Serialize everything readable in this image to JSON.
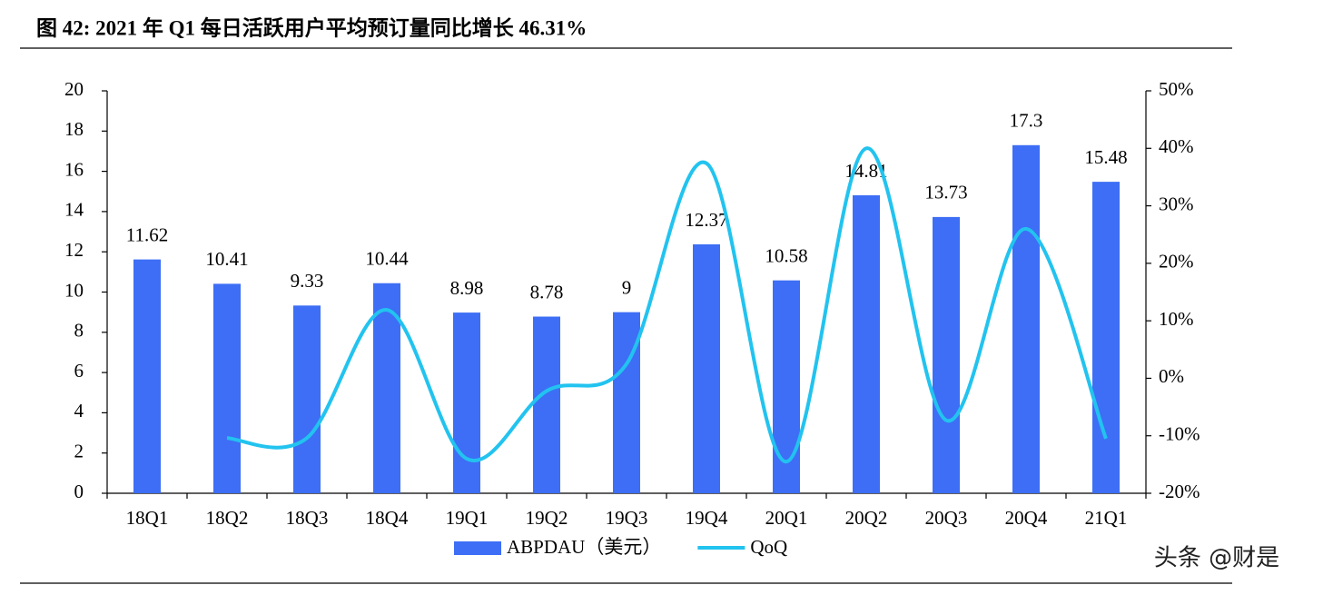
{
  "chart_data": {
    "type": "bar-line",
    "title": "图 42: 2021 年 Q1 每日活跃用户平均预订量同比增长 46.31%",
    "categories": [
      "18Q1",
      "18Q2",
      "18Q3",
      "18Q4",
      "19Q1",
      "19Q2",
      "19Q3",
      "19Q4",
      "20Q1",
      "20Q2",
      "20Q3",
      "20Q4",
      "21Q1"
    ],
    "series": [
      {
        "name": "ABPDAU（美元）",
        "type": "bar",
        "color": "#3d6ef5",
        "values": [
          11.62,
          10.41,
          9.33,
          10.44,
          8.98,
          8.78,
          9,
          12.37,
          10.58,
          14.81,
          13.73,
          17.3,
          15.48
        ]
      },
      {
        "name": "QoQ",
        "type": "line",
        "axis": "y2",
        "color": "#22c3ef",
        "values": [
          null,
          -10.4,
          -10.4,
          11.9,
          -14.0,
          -2.2,
          2.5,
          37.4,
          -14.5,
          40.0,
          -7.3,
          26.0,
          -10.5
        ]
      }
    ],
    "ylim": [
      0,
      20
    ],
    "yticks": [
      0,
      2,
      4,
      6,
      8,
      10,
      12,
      14,
      16,
      18,
      20
    ],
    "y2lim": [
      -20,
      50
    ],
    "y2ticks": [
      {
        "value": -20,
        "label": "-20%"
      },
      {
        "value": -10,
        "label": "-10%"
      },
      {
        "value": 0,
        "label": "0%"
      },
      {
        "value": 10,
        "label": "10%"
      },
      {
        "value": 20,
        "label": "20%"
      },
      {
        "value": 30,
        "label": "30%"
      },
      {
        "value": 40,
        "label": "40%"
      },
      {
        "value": 50,
        "label": "50%"
      }
    ],
    "legend": "bottom",
    "watermark": "头条 @财是"
  }
}
